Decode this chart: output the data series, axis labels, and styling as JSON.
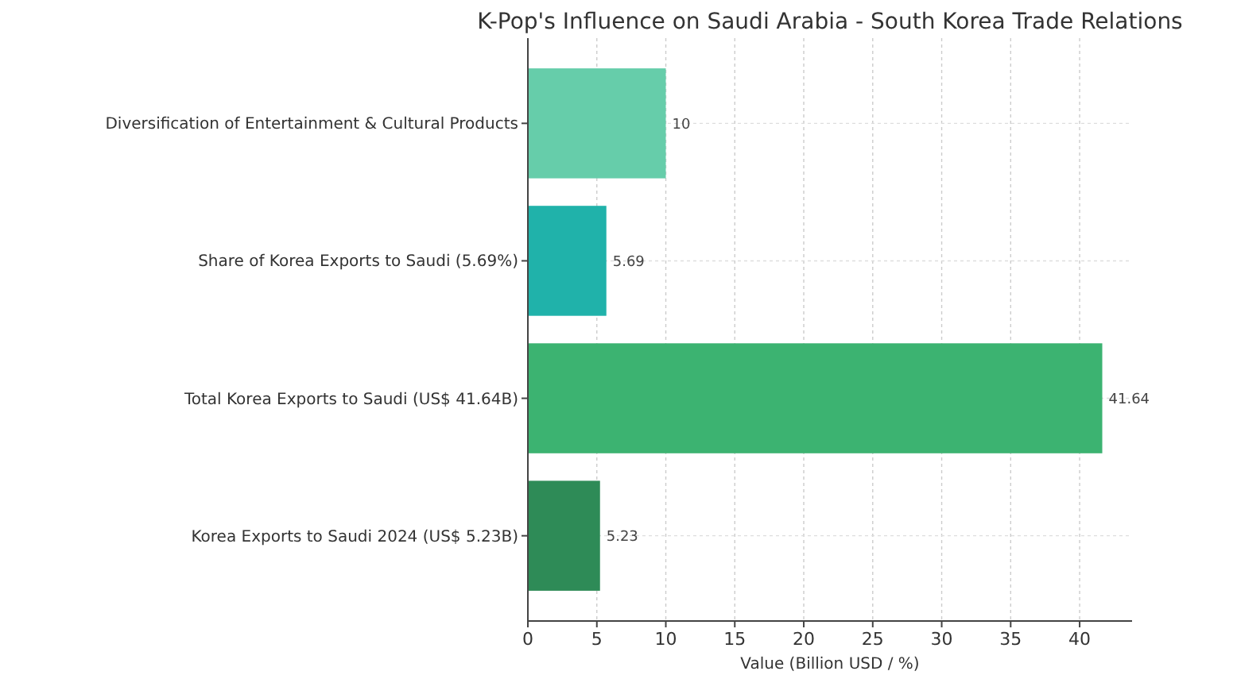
{
  "chart_data": {
    "type": "bar",
    "orientation": "horizontal",
    "title": "K-Pop's Influence on Saudi Arabia - South Korea Trade Relations",
    "xlabel": "Value (Billion USD / %)",
    "categories": [
      "Diversification of Entertainment & Cultural Products",
      "Share of Korea Exports to Saudi (5.69%)",
      "Total Korea Exports to Saudi (US$ 41.64B)",
      "Korea Exports to Saudi 2024 (US$ 5.23B)"
    ],
    "values": [
      10,
      5.69,
      41.64,
      5.23
    ],
    "colors": [
      "#66cdaa",
      "#20b2aa",
      "#3cb371",
      "#2e8b57"
    ],
    "xlim": [
      0,
      43.8
    ],
    "xticks": [
      0,
      5,
      10,
      15,
      20,
      25,
      30,
      35,
      40
    ],
    "grid": true,
    "data_labels": true
  }
}
